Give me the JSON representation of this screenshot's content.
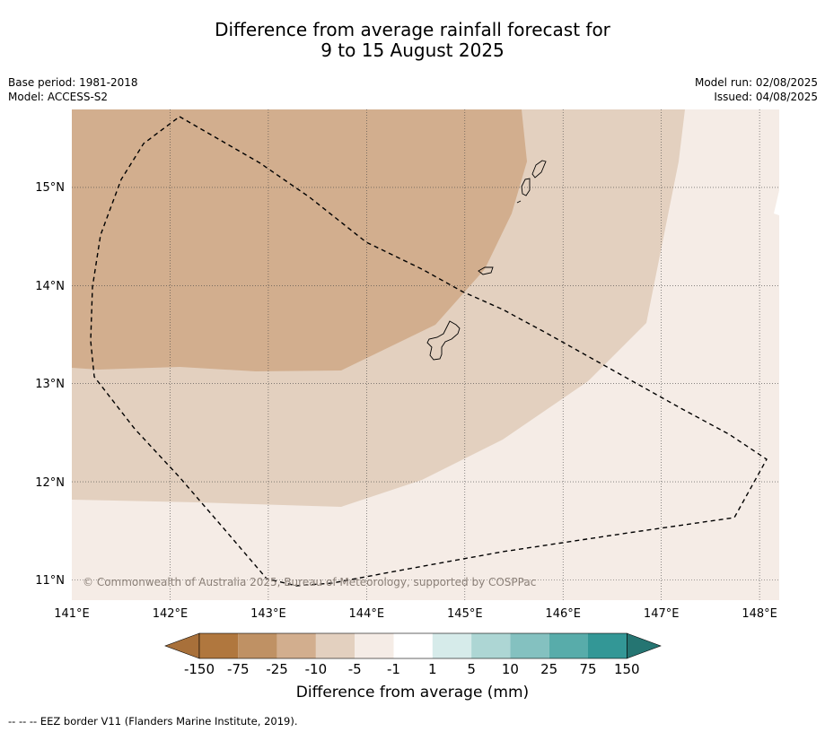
{
  "title_line1": "Difference from average rainfall forecast for",
  "title_line2": "9 to 15 August 2025",
  "meta_left": {
    "base_period": "Base period: 1981-2018",
    "model": "Model: ACCESS-S2"
  },
  "meta_right": {
    "model_run": "Model run: 02/08/2025",
    "issued": "Issued: 04/08/2025"
  },
  "map": {
    "lon_ticks": [
      "141°E",
      "142°E",
      "143°E",
      "144°E",
      "145°E",
      "146°E",
      "147°E",
      "148°E"
    ],
    "lat_ticks": [
      "15°N",
      "14°N",
      "13°N",
      "12°N",
      "11°N"
    ],
    "lon_range": [
      141,
      148.2
    ],
    "lat_range": [
      10.8,
      15.8
    ],
    "copyright": "© Commonwealth of Australia 2025, Bureau of Meteorology, supported by COSPPac"
  },
  "colorbar": {
    "title": "Difference from average (mm)",
    "tick_labels": [
      "-150",
      "-75",
      "-25",
      "-10",
      "-5",
      "-1",
      "1",
      "5",
      "10",
      "25",
      "75",
      "150"
    ],
    "colors": [
      "#a8703a",
      "#b0773e",
      "#bf9164",
      "#d2ae8e",
      "#e3d0bf",
      "#f5ece6",
      "#ffffff",
      "#d6ebea",
      "#add6d4",
      "#84c1c0",
      "#58acaa",
      "#339796",
      "#257572"
    ]
  },
  "footer": "--  --  -- EEZ border V11 (Flanders Marine Institute, 2019)."
}
